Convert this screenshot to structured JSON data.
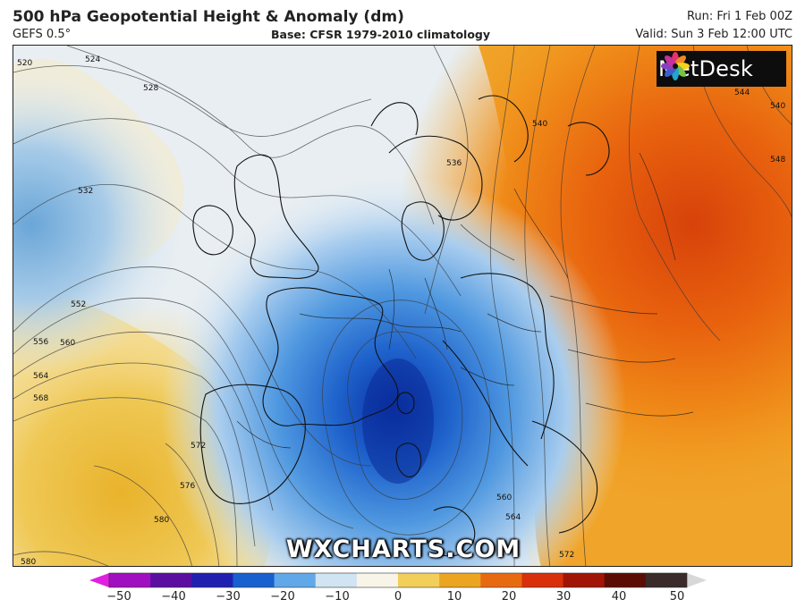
{
  "header": {
    "title": "500 hPa Geopotential Height & Anomaly (dm)",
    "model": "GEFS 0.5°",
    "base": "Base: CFSR 1979-2010 climatology",
    "run": "Run: Fri 1 Feb 00Z",
    "valid": "Valid: Sun 3 Feb 12:00 UTC"
  },
  "logo": {
    "text": "MetDesk"
  },
  "watermark": "WXCHARTS.COM",
  "contour_labels": [
    "520",
    "524",
    "528",
    "532",
    "552",
    "556",
    "560",
    "564",
    "568",
    "572",
    "576",
    "580",
    "580",
    "560",
    "564",
    "572",
    "540",
    "544",
    "548",
    "540",
    "536"
  ],
  "colorbar": {
    "ticks": [
      "−50",
      "−40",
      "−30",
      "−20",
      "−10",
      "0",
      "10",
      "20",
      "30",
      "40",
      "50"
    ],
    "min": -50,
    "max": 50,
    "colors": [
      "#e020e0",
      "#a010c0",
      "#5a0fa0",
      "#2020b0",
      "#1860d0",
      "#60a8e8",
      "#d0e4f2",
      "#f8f4e8",
      "#f2cf5a",
      "#eba520",
      "#e86a10",
      "#d8300a",
      "#a01505",
      "#5a0d05",
      "#3a2a2a",
      "#d8d8d8"
    ]
  }
}
